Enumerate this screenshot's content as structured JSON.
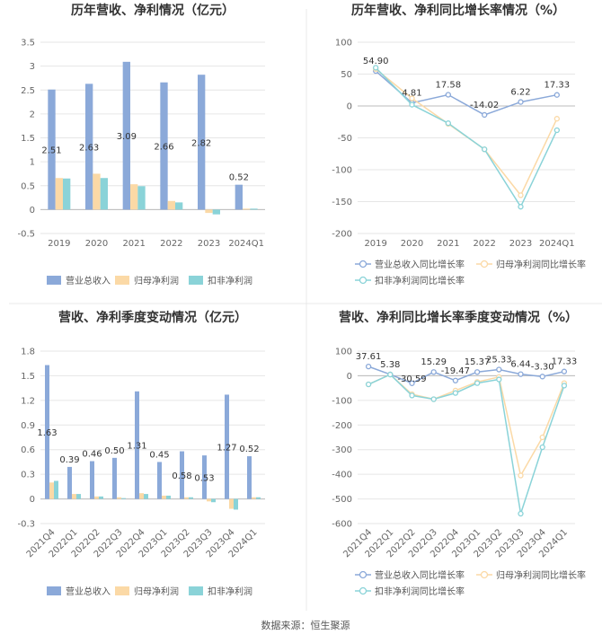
{
  "footer": {
    "source": "数据来源：恒生聚源"
  },
  "chart_data": [
    {
      "type": "bar",
      "title": "历年营收、净利情况（亿元）",
      "categories": [
        "2019",
        "2020",
        "2021",
        "2022",
        "2023",
        "2024Q1"
      ],
      "ylim": [
        -0.5,
        3.5
      ],
      "yticks": [
        "3.5",
        "3",
        "2.5",
        "2",
        "1.5",
        "1",
        "0.5",
        "0",
        "-0.5"
      ],
      "series": [
        {
          "name": "营业总收入",
          "color": "#8ba9d9",
          "values": [
            2.51,
            2.63,
            3.09,
            2.66,
            2.82,
            0.52
          ],
          "labels": [
            "2.51",
            "2.63",
            "3.09",
            "2.66",
            "2.82",
            "0.52"
          ]
        },
        {
          "name": "归母净利润",
          "color": "#fbd9a6",
          "values": [
            0.66,
            0.75,
            0.53,
            0.18,
            -0.07,
            0.02
          ]
        },
        {
          "name": "扣非净利润",
          "color": "#8ad3d8",
          "values": [
            0.65,
            0.66,
            0.49,
            0.15,
            -0.1,
            0.02
          ]
        }
      ],
      "legend": "bottom"
    },
    {
      "type": "line",
      "title": "历年营收、净利同比增长率情况（%）",
      "categories": [
        "2019",
        "2020",
        "2021",
        "2022",
        "2023",
        "2024Q1"
      ],
      "ylim": [
        -200,
        100
      ],
      "yticks": [
        "100",
        "50",
        "0",
        "-50",
        "-100",
        "-150",
        "-200"
      ],
      "series": [
        {
          "name": "营业总收入同比增长率",
          "color": "#8ba9d9",
          "values": [
            54.9,
            4.81,
            17.58,
            -14.02,
            6.22,
            17.33
          ],
          "labels": [
            "54.90",
            "4.81",
            "17.58",
            "-14.02",
            "6.22",
            "17.33"
          ]
        },
        {
          "name": "归母净利润同比增长率",
          "color": "#fbd9a6",
          "values": [
            58,
            12,
            -28,
            -68,
            -140,
            -20
          ]
        },
        {
          "name": "扣非净利润同比增长率",
          "color": "#8ad3d8",
          "values": [
            60,
            2,
            -27,
            -68,
            -158,
            -38
          ]
        }
      ],
      "legend": "bottom"
    },
    {
      "type": "bar",
      "title": "营收、净利季度变动情况（亿元）",
      "categories": [
        "2021Q4",
        "2022Q1",
        "2022Q2",
        "2022Q3",
        "2022Q4",
        "2023Q1",
        "2023Q2",
        "2023Q3",
        "2023Q4",
        "2024Q1"
      ],
      "ylim": [
        -0.3,
        1.8
      ],
      "yticks": [
        "1.8",
        "1.5",
        "1.2",
        "0.9",
        "0.6",
        "0.3",
        "0",
        "-0.3"
      ],
      "series": [
        {
          "name": "营业总收入",
          "color": "#8ba9d9",
          "values": [
            1.63,
            0.39,
            0.46,
            0.5,
            1.31,
            0.45,
            0.58,
            0.53,
            1.27,
            0.52
          ],
          "labels": [
            "1.63",
            "0.39",
            "0.46",
            "0.50",
            "1.31",
            "0.45",
            "0.58",
            "0.53",
            "1.27",
            "0.52"
          ]
        },
        {
          "name": "归母净利润",
          "color": "#fbd9a6",
          "values": [
            0.2,
            0.06,
            0.03,
            0.02,
            0.07,
            0.04,
            0.02,
            -0.03,
            -0.12,
            0.02
          ]
        },
        {
          "name": "扣非净利润",
          "color": "#8ad3d8",
          "values": [
            0.22,
            0.06,
            0.03,
            0.01,
            0.06,
            0.04,
            0.02,
            -0.04,
            -0.13,
            0.02
          ]
        }
      ],
      "legend": "bottom"
    },
    {
      "type": "line",
      "title": "营收、净利同比增长率季度变动情况（%）",
      "categories": [
        "2021Q4",
        "2022Q1",
        "2022Q2",
        "2022Q3",
        "2022Q4",
        "2023Q1",
        "2023Q2",
        "2023Q3",
        "2023Q4",
        "2024Q1"
      ],
      "ylim": [
        -600,
        100
      ],
      "yticks": [
        "100",
        "0",
        "-100",
        "-200",
        "-300",
        "-400",
        "-500",
        "-600"
      ],
      "series": [
        {
          "name": "营业总收入同比增长率",
          "color": "#8ba9d9",
          "values": [
            37.61,
            5.38,
            -30.59,
            15.29,
            -19.47,
            15.37,
            25.33,
            6.44,
            -3.3,
            17.33
          ],
          "labels": [
            "37.61",
            "5.38",
            "-30.59",
            "15.29",
            "-19.47",
            "15.37",
            "25.33",
            "6.44",
            "-3.30",
            "17.33"
          ]
        },
        {
          "name": "归母净利润同比增长率",
          "color": "#fbd9a6",
          "values": [
            -35,
            5,
            -75,
            -95,
            -60,
            -25,
            -5,
            -405,
            -250,
            -30
          ]
        },
        {
          "name": "扣非净利润同比增长率",
          "color": "#8ad3d8",
          "values": [
            -35,
            5,
            -80,
            -95,
            -70,
            -30,
            -15,
            -560,
            -290,
            -40
          ]
        }
      ],
      "legend": "bottom"
    }
  ]
}
